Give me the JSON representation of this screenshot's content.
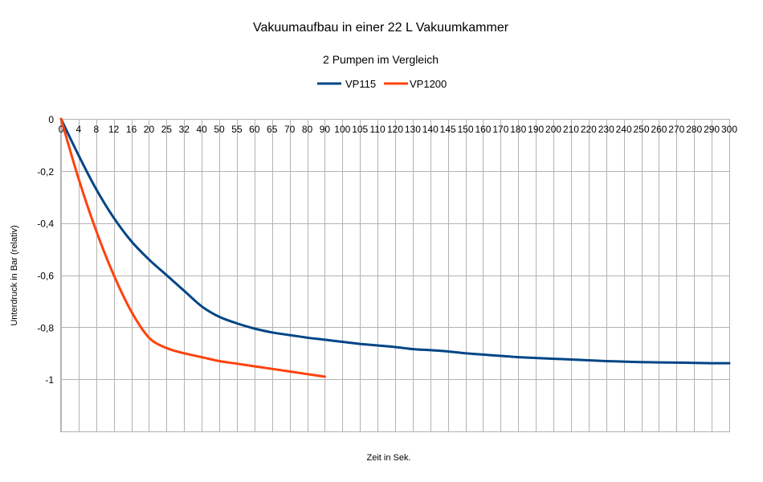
{
  "chart_data": {
    "type": "line",
    "title": "Vakuumaufbau in einer 22 L Vakuumkammer",
    "subtitle": "2 Pumpen im Vergleich",
    "xlabel": "Zeit in Sek.",
    "ylabel": "Unterdruck in Bar (relativ)",
    "categories": [
      "0",
      "4",
      "8",
      "12",
      "16",
      "20",
      "25",
      "32",
      "40",
      "50",
      "55",
      "60",
      "65",
      "70",
      "80",
      "90",
      "100",
      "105",
      "110",
      "120",
      "130",
      "140",
      "145",
      "150",
      "160",
      "170",
      "180",
      "190",
      "200",
      "210",
      "220",
      "230",
      "240",
      "250",
      "260",
      "270",
      "280",
      "290",
      "300"
    ],
    "ylim": [
      -1.2,
      0
    ],
    "yticks": [
      "0",
      "-0,2",
      "-0,4",
      "-0,6",
      "-0,8",
      "-1"
    ],
    "ytick_values": [
      0,
      -0.2,
      -0.4,
      -0.6,
      -0.8,
      -1.0
    ],
    "grid": true,
    "legend_position": "top",
    "series": [
      {
        "name": "VP115",
        "color": "#004586",
        "values": [
          0,
          -0.14,
          -0.27,
          -0.38,
          -0.47,
          -0.54,
          -0.6,
          -0.66,
          -0.72,
          -0.76,
          -0.785,
          -0.805,
          -0.82,
          -0.83,
          -0.84,
          -0.848,
          -0.856,
          -0.864,
          -0.87,
          -0.876,
          -0.884,
          -0.888,
          -0.893,
          -0.9,
          -0.905,
          -0.91,
          -0.915,
          -0.918,
          -0.921,
          -0.924,
          -0.927,
          -0.93,
          -0.932,
          -0.934,
          -0.935,
          -0.936,
          -0.937,
          -0.938,
          -0.938
        ]
      },
      {
        "name": "VP1200",
        "color": "#ff420e",
        "values": [
          0,
          -0.23,
          -0.43,
          -0.6,
          -0.74,
          -0.84,
          -0.88,
          -0.9,
          -0.915,
          -0.93,
          -0.94,
          -0.95,
          -0.96,
          -0.97,
          -0.98,
          -0.99,
          null,
          null,
          null,
          null,
          null,
          null,
          null,
          null,
          null,
          null,
          null,
          null,
          null,
          null,
          null,
          null,
          null,
          null,
          null,
          null,
          null,
          null,
          null
        ]
      }
    ]
  }
}
